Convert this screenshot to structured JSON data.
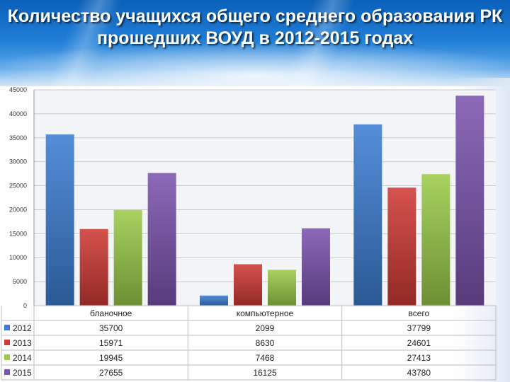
{
  "title": "Количество учащихся общего среднего образования РК прошедших ВОУД в 2012-2015 годах",
  "colors": {
    "2012": "#3d7fd4",
    "2013": "#d03a35",
    "2014": "#9ccc4a",
    "2015": "#7c54b0"
  },
  "chart_data": {
    "type": "bar",
    "title": "Количество учащихся общего среднего образования РК прошедших ВОУД в 2012-2015 годах",
    "categories": [
      "бланочное",
      "компьютерное",
      "всего"
    ],
    "series": [
      {
        "name": "2012",
        "values": [
          35700,
          2099,
          37799
        ]
      },
      {
        "name": "2013",
        "values": [
          15971,
          8630,
          24601
        ]
      },
      {
        "name": "2014",
        "values": [
          19945,
          7468,
          27413
        ]
      },
      {
        "name": "2015",
        "values": [
          27655,
          16125,
          43780
        ]
      }
    ],
    "ylim": [
      0,
      45000
    ],
    "yticks": [
      "0",
      "5000",
      "10000",
      "15000",
      "20000",
      "25000",
      "30000",
      "35000",
      "40000",
      "45000"
    ],
    "table": [
      {
        "series": "2012",
        "values": [
          "35700",
          "2099",
          "37799"
        ]
      },
      {
        "series": "2013",
        "values": [
          "15971",
          "8630",
          "24601"
        ]
      },
      {
        "series": "2014",
        "values": [
          "19945",
          "7468",
          "27413"
        ]
      },
      {
        "series": "2015",
        "values": [
          "27655",
          "16125",
          "43780"
        ]
      }
    ],
    "grid": true,
    "legend": "data-table"
  }
}
